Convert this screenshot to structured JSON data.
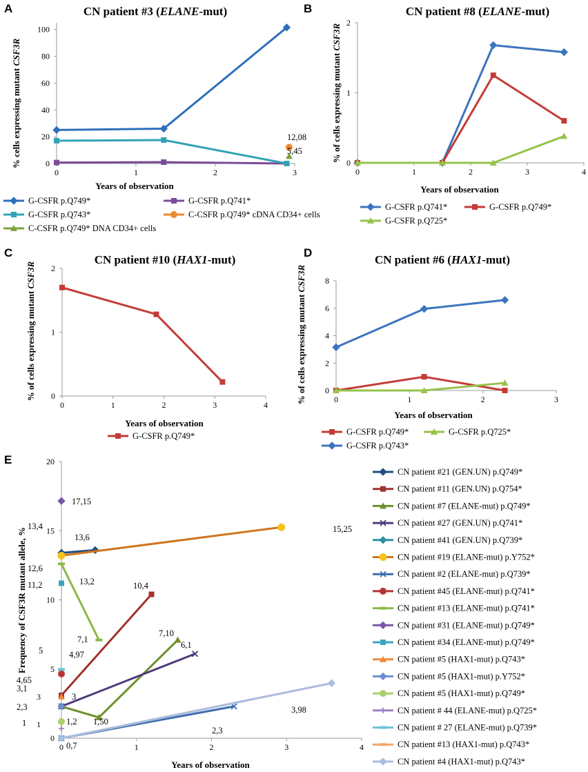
{
  "figure": {
    "panel_labels": [
      "A",
      "B",
      "C",
      "D",
      "E"
    ]
  },
  "chart_data": [
    {
      "panel": "A",
      "type": "line",
      "title": "CN patient #3 (",
      "title_italic": "ELANE",
      "title_end": "-mut)",
      "xlabel": "Years of observation",
      "ylabel": "% cells expressing mutant ",
      "ylabel_italic": "CSF3R",
      "xlim": [
        0,
        3
      ],
      "ylim": [
        0,
        105
      ],
      "xticks": [
        0,
        1,
        2,
        3
      ],
      "yticks": [
        0,
        20,
        40,
        60,
        80,
        100
      ],
      "series": [
        {
          "name": "G-CSFR p.Q749*",
          "color": "#2e6fba",
          "marker": "diamond",
          "x": [
            0,
            1.35,
            2.9
          ],
          "y": [
            25,
            26,
            101.5
          ]
        },
        {
          "name": "G-CSFR p.Q741*",
          "color": "#7a4b9a",
          "marker": "square",
          "x": [
            0,
            1.35,
            2.9
          ],
          "y": [
            0.7,
            1,
            0
          ]
        },
        {
          "name": "G-CSFR p.Q743*",
          "color": "#31a3b5",
          "marker": "square",
          "x": [
            0,
            1.35,
            2.9
          ],
          "y": [
            17,
            17.5,
            0
          ]
        },
        {
          "name": "C-CSFR p.Q749* cDNA CD34+ cells",
          "color": "#ef8a2c",
          "marker": "circle",
          "x": [
            2.93
          ],
          "y": [
            12.08
          ]
        },
        {
          "name": "C-CSFR p.Q749* DNA CD34+ cells",
          "color": "#7fa33c",
          "marker": "triangle",
          "x": [
            2.93
          ],
          "y": [
            5.45
          ]
        }
      ],
      "annotations": [
        "12,08",
        "5,45"
      ]
    },
    {
      "panel": "B",
      "type": "line",
      "title": "CN patient #8 (",
      "title_italic": "ELANE",
      "title_end": "-mut)",
      "xlabel": "Years of observation",
      "ylabel": "% of cells expressing mutant ",
      "ylabel_italic": "CSF3R",
      "xlim": [
        0,
        4
      ],
      "ylim": [
        0,
        2
      ],
      "xticks": [
        0,
        1,
        2,
        3,
        4
      ],
      "yticks": [
        0,
        1,
        2
      ],
      "series": [
        {
          "name": "G-CSFR p.Q741*",
          "color": "#3c74bf",
          "marker": "diamond",
          "x": [
            0,
            1.5,
            2.4,
            3.65
          ],
          "y": [
            0,
            0,
            1.68,
            1.58
          ]
        },
        {
          "name": "G-CSFR p.Q749*",
          "color": "#c43b36",
          "marker": "square",
          "x": [
            0,
            1.5,
            2.4,
            3.65
          ],
          "y": [
            0,
            0,
            1.25,
            0.6
          ]
        },
        {
          "name": "G-CSFR p.Q725*",
          "color": "#96c24a",
          "marker": "triangle",
          "x": [
            0,
            1.5,
            2.4,
            3.65
          ],
          "y": [
            0,
            0,
            0,
            0.38
          ]
        }
      ]
    },
    {
      "panel": "C",
      "type": "line",
      "title": "CN patient #10 (",
      "title_italic": "HAX1",
      "title_end": "-mut)",
      "xlabel": "Years of observation",
      "ylabel": "% of cells expressing mutant ",
      "ylabel_italic": "CSF3R",
      "xlim": [
        0,
        4
      ],
      "ylim": [
        0,
        2
      ],
      "xticks": [
        0,
        1,
        2,
        3,
        4
      ],
      "yticks": [
        0,
        1,
        2
      ],
      "series": [
        {
          "name": "G-CSFR p.Q749*",
          "color": "#c43b36",
          "marker": "square",
          "x": [
            0,
            1.85,
            3.15
          ],
          "y": [
            1.7,
            1.28,
            0.22
          ]
        }
      ]
    },
    {
      "panel": "D",
      "type": "line",
      "title": "CN patient #6 (",
      "title_italic": "HAX1",
      "title_end": "-mut)",
      "xlabel": "Years of observation",
      "ylabel": "% of cells expressing mutant ",
      "ylabel_italic": "CSF3R",
      "xlim": [
        0,
        3
      ],
      "ylim": [
        0,
        8
      ],
      "xticks": [
        0,
        1,
        2,
        3
      ],
      "yticks": [
        0,
        2,
        4,
        6,
        8
      ],
      "series": [
        {
          "name": "G-CSFR p.Q749*",
          "color": "#c43b36",
          "marker": "square",
          "x": [
            0,
            1.2,
            2.3
          ],
          "y": [
            0,
            1,
            0
          ]
        },
        {
          "name": "G-CSFR p.Q725*",
          "color": "#96c24a",
          "marker": "triangle",
          "x": [
            0,
            1.2,
            2.3
          ],
          "y": [
            0,
            0,
            0.55
          ]
        },
        {
          "name": "G-CSFR p.Q743*",
          "color": "#3c74bf",
          "marker": "diamond",
          "x": [
            0,
            1.2,
            2.3
          ],
          "y": [
            3.15,
            5.95,
            6.6
          ]
        }
      ]
    },
    {
      "panel": "E",
      "type": "line",
      "title": "",
      "xlabel": "Years of observation",
      "ylabel": "Frequency of CSF3R mutant  allele, %",
      "ylabel_italic": "",
      "xlim": [
        0,
        4
      ],
      "ylim": [
        0,
        20
      ],
      "xticks": [
        0,
        1,
        2,
        3,
        4
      ],
      "yticks": [
        0,
        5,
        10,
        15,
        20
      ],
      "yticks_extra": [
        1,
        3
      ],
      "series": [
        {
          "name": "CN patient #21 (GEN.UN) p.Q749*",
          "color": "#1f4f82",
          "marker": "diamond",
          "x": [
            0,
            0.45
          ],
          "y": [
            13.4,
            13.6
          ]
        },
        {
          "name": "CN patient #11 (GEN.UN) p.Q754*",
          "color": "#a0322e",
          "marker": "square",
          "x": [
            0,
            1.2
          ],
          "y": [
            3.1,
            10.4
          ]
        },
        {
          "name": "CN patient #7 (ELANE-mut) p.Q749*",
          "color": "#6f8f2b",
          "marker": "triangle",
          "x": [
            0,
            0.5,
            1.55
          ],
          "y": [
            2.3,
            1.5,
            7.1
          ]
        },
        {
          "name": "CN patient #27 (GEN.UN) p.Q741*",
          "color": "#4f3a7a",
          "marker": "x",
          "x": [
            0,
            1.78
          ],
          "y": [
            2.3,
            6.1
          ]
        },
        {
          "name": "CN patient #41 (GEN.UN) p.Q739*",
          "color": "#2e8fa0",
          "marker": "diamond",
          "x": [
            0
          ],
          "y": [
            13.2
          ]
        },
        {
          "name": "CN patient #19 (ELANE-mut) p.Y752*",
          "color": "#d0751f",
          "marker": "circle-yellow",
          "x": [
            0,
            2.93
          ],
          "y": [
            13.2,
            15.25
          ]
        },
        {
          "name": "CN patient #2 (ELANE-mut) p.Q739*",
          "color": "#3c6db0",
          "marker": "x",
          "x": [
            0,
            2.3
          ],
          "y": [
            0,
            2.3
          ]
        },
        {
          "name": "CN patient #45 (ELANE-mut) p.Q741*",
          "color": "#b83434",
          "marker": "circle",
          "x": [
            0
          ],
          "y": [
            4.65
          ]
        },
        {
          "name": "CN patient #13 (ELANE-mut)  p.Q741*",
          "color": "#8cb845",
          "marker": "dash",
          "x": [
            0,
            0.5
          ],
          "y": [
            12.6,
            7.1
          ]
        },
        {
          "name": "CN patient #31 (ELANE-mut) p.Q749*",
          "color": "#7a56a8",
          "marker": "diamond",
          "x": [
            0
          ],
          "y": [
            17.15
          ]
        },
        {
          "name": "CN patient #34 (ELANE-mut) p.Q749*",
          "color": "#3aa6c2",
          "marker": "square",
          "x": [
            0
          ],
          "y": [
            11.2
          ]
        },
        {
          "name": "CN patient #5 (HAX1-mut) p.Q743*",
          "color": "#f0883a",
          "marker": "triangle",
          "x": [
            0
          ],
          "y": [
            3
          ]
        },
        {
          "name": "CN patient #5 (HAX1-mut) p.Y752*",
          "color": "#6d8fd0",
          "marker": "diamond",
          "x": [
            0
          ],
          "y": [
            2.3
          ]
        },
        {
          "name": "CN patient #5 (HAX1-mut) p.Q749*",
          "color": "#a9d06a",
          "marker": "circle",
          "x": [
            0
          ],
          "y": [
            1.2
          ]
        },
        {
          "name": "CN patient # 44 (ELANE-mut) p.Q725*",
          "color": "#9a82c4",
          "marker": "plus",
          "x": [
            0
          ],
          "y": [
            0.7
          ]
        },
        {
          "name": "CN patient # 27 (ELANE-mut)  p.Q739*",
          "color": "#6cc4d8",
          "marker": "dash",
          "x": [
            0
          ],
          "y": [
            4.97
          ]
        },
        {
          "name": "CN patient #13 (HAX1-mut) p.Q743*",
          "color": "#f4a66a",
          "marker": "none",
          "x": [
            0,
            3.6
          ],
          "y": [
            0,
            3.98
          ]
        },
        {
          "name": "CN patient #4 (HAX1-mut) p.Q743*",
          "color": "#a9bde3",
          "marker": "diamond",
          "x": [
            0,
            3.6
          ],
          "y": [
            0,
            3.98
          ]
        }
      ],
      "annotations": [
        "17,15",
        "13,4",
        "13,6",
        "15,25",
        "12,6",
        "13,2",
        "11,2",
        "10,4",
        "7,1",
        "7,10",
        "6,1",
        "5",
        "4,97",
        "4,65",
        "3,1",
        "3",
        "2,3",
        "1,2",
        "1,50",
        "0,7",
        "2,3",
        "3,98",
        "1"
      ]
    }
  ]
}
